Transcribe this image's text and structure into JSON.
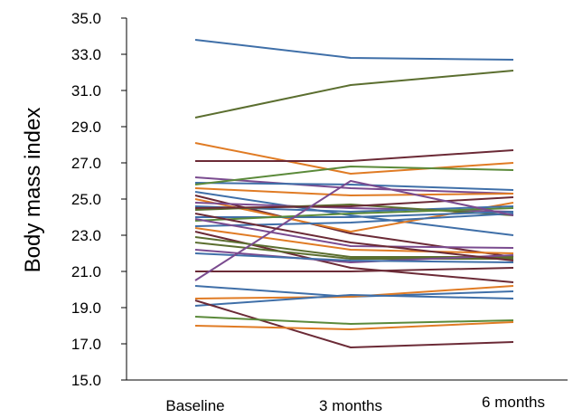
{
  "chart_data": {
    "type": "line",
    "ylabel": "Body mass index",
    "xlabel": "",
    "title": "",
    "categories": [
      "Baseline",
      "3 months",
      "6 months"
    ],
    "ylim": [
      15.0,
      35.0
    ],
    "yticks": [
      "15.0",
      "17.0",
      "19.0",
      "21.0",
      "23.0",
      "25.0",
      "27.0",
      "29.0",
      "31.0",
      "33.0",
      "35.0"
    ],
    "grid": false,
    "legend": "none",
    "series": [
      {
        "color": "#3f6fa8",
        "values": [
          33.8,
          32.8,
          32.7
        ]
      },
      {
        "color": "#5b6e2f",
        "values": [
          29.5,
          31.3,
          32.1
        ]
      },
      {
        "color": "#e07b24",
        "values": [
          28.1,
          26.4,
          27.0
        ]
      },
      {
        "color": "#6b2a36",
        "values": [
          27.1,
          27.1,
          27.7
        ]
      },
      {
        "color": "#7a4b8f",
        "values": [
          26.2,
          25.6,
          25.3
        ]
      },
      {
        "color": "#3f6fa8",
        "values": [
          25.9,
          25.8,
          25.5
        ]
      },
      {
        "color": "#5b8a3a",
        "values": [
          25.8,
          26.8,
          26.6
        ]
      },
      {
        "color": "#e07b24",
        "values": [
          25.6,
          25.2,
          25.3
        ]
      },
      {
        "color": "#3f6fa8",
        "values": [
          25.4,
          24.1,
          23.0
        ]
      },
      {
        "color": "#6b2a36",
        "values": [
          25.2,
          23.1,
          21.8
        ]
      },
      {
        "color": "#e07b24",
        "values": [
          25.0,
          23.2,
          24.8
        ]
      },
      {
        "color": "#7a4b8f",
        "values": [
          24.8,
          24.5,
          24.3
        ]
      },
      {
        "color": "#3f6fa8",
        "values": [
          24.6,
          24.3,
          24.6
        ]
      },
      {
        "color": "#5b6e2f",
        "values": [
          24.4,
          24.7,
          24.1
        ]
      },
      {
        "color": "#6b2a36",
        "values": [
          24.5,
          24.6,
          25.1
        ]
      },
      {
        "color": "#3f6fa8",
        "values": [
          24.0,
          24.0,
          24.3
        ]
      },
      {
        "color": "#5b8a3a",
        "values": [
          23.8,
          24.2,
          24.5
        ]
      },
      {
        "color": "#3f6fa8",
        "values": [
          23.5,
          23.7,
          24.2
        ]
      },
      {
        "color": "#e07b24",
        "values": [
          23.4,
          22.2,
          22.0
        ]
      },
      {
        "color": "#6b2a36",
        "values": [
          23.2,
          21.2,
          20.4
        ]
      },
      {
        "color": "#5b6e2f",
        "values": [
          22.9,
          21.8,
          21.8
        ]
      },
      {
        "color": "#5b6e2f",
        "values": [
          22.6,
          21.7,
          21.7
        ]
      },
      {
        "color": "#7a4b8f",
        "values": [
          22.2,
          21.5,
          21.9
        ]
      },
      {
        "color": "#3f6fa8",
        "values": [
          22.0,
          21.6,
          21.5
        ]
      },
      {
        "color": "#6b2a36",
        "values": [
          21.0,
          21.0,
          21.2
        ]
      },
      {
        "color": "#7a4b8f",
        "values": [
          20.5,
          26.0,
          24.1
        ]
      },
      {
        "color": "#3f6fa8",
        "values": [
          20.2,
          19.6,
          19.9
        ]
      },
      {
        "color": "#e07b24",
        "values": [
          19.5,
          19.6,
          20.2
        ]
      },
      {
        "color": "#3f6fa8",
        "values": [
          19.1,
          19.7,
          19.5
        ]
      },
      {
        "color": "#6b2a36",
        "values": [
          19.4,
          16.8,
          17.1
        ]
      },
      {
        "color": "#5b8a3a",
        "values": [
          18.5,
          18.1,
          18.3
        ]
      },
      {
        "color": "#e07b24",
        "values": [
          18.0,
          17.8,
          18.2
        ]
      },
      {
        "color": "#7a4b8f",
        "values": [
          23.9,
          22.4,
          22.3
        ]
      },
      {
        "color": "#6b2a36",
        "values": [
          24.2,
          22.6,
          21.6
        ]
      }
    ]
  }
}
